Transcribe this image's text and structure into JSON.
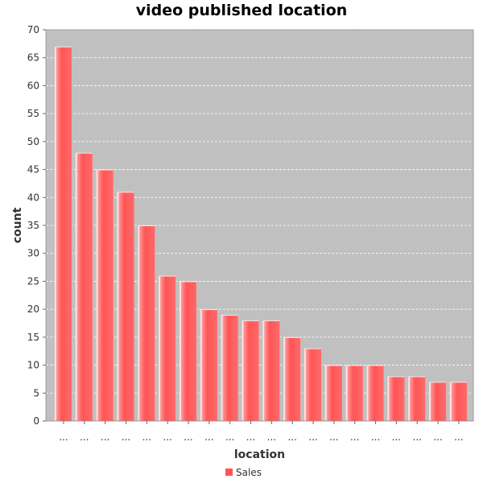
{
  "chart_data": {
    "type": "bar",
    "title": "video published location",
    "xlabel": "location",
    "ylabel": "count",
    "categories": [
      "...",
      "...",
      "...",
      "...",
      "...",
      "...",
      "...",
      "...",
      "...",
      "...",
      "...",
      "...",
      "...",
      "...",
      "...",
      "...",
      "...",
      "...",
      "...",
      "..."
    ],
    "series": [
      {
        "name": "Sales",
        "color": "#ff5555",
        "values": [
          67,
          48,
          45,
          41,
          35,
          26,
          25,
          20,
          19,
          18,
          18,
          15,
          13,
          10,
          10,
          10,
          8,
          8,
          7,
          7
        ]
      }
    ],
    "ylim": [
      0,
      70
    ],
    "yticks": [
      0,
      5,
      10,
      15,
      20,
      25,
      30,
      35,
      40,
      45,
      50,
      55,
      60,
      65,
      70
    ],
    "grid": true,
    "legend": "bottom-center",
    "plot_background": "#c0c0c0"
  }
}
